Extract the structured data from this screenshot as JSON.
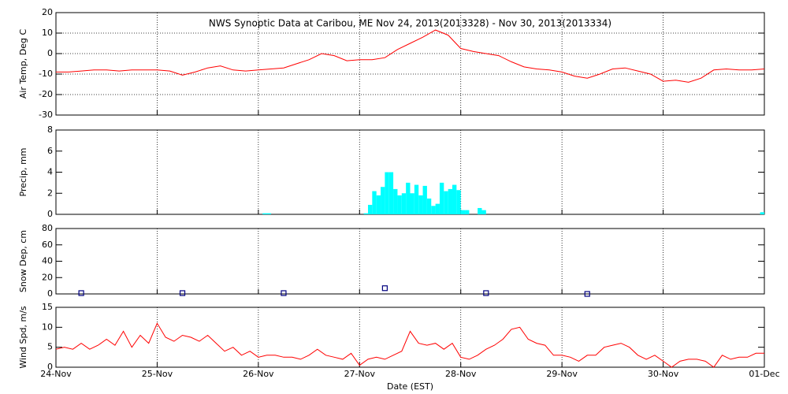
{
  "chart_data": [
    {
      "type": "line",
      "title": "NWS Synoptic Data at Caribou, ME   Nov 24, 2013(2013328) - Nov 30, 2013(2013334)",
      "ylabel": "Air Temp, Deg C",
      "color": "#ff0000",
      "grid": "both",
      "xlim": [
        0,
        168
      ],
      "xticks": [
        0,
        24,
        48,
        72,
        96,
        120,
        144,
        168
      ],
      "ylim": [
        -30,
        20
      ],
      "yticks": [
        -30,
        -20,
        -10,
        0,
        10,
        20
      ],
      "x": [
        0,
        3,
        6,
        9,
        12,
        15,
        18,
        21,
        24,
        27,
        30,
        33,
        36,
        39,
        42,
        45,
        48,
        51,
        54,
        57,
        60,
        63,
        66,
        69,
        72,
        75,
        78,
        81,
        84,
        87,
        90,
        93,
        96,
        99,
        102,
        105,
        108,
        111,
        114,
        117,
        120,
        123,
        126,
        129,
        132,
        135,
        138,
        141,
        144,
        147,
        150,
        153,
        156,
        159,
        162,
        165,
        168
      ],
      "values": [
        -9,
        -9,
        -8.5,
        -8,
        -8,
        -8.5,
        -8,
        -8,
        -8,
        -8.5,
        -10.5,
        -9,
        -7,
        -6,
        -8,
        -8.5,
        -8,
        -7.5,
        -7,
        -5,
        -3,
        0,
        -1,
        -3.5,
        -3,
        -3,
        -2,
        2,
        5,
        8,
        11.5,
        9,
        2.5,
        1,
        0,
        -1,
        -4,
        -6.5,
        -7.5,
        -8,
        -9,
        -11,
        -12,
        -10,
        -7.5,
        -7,
        -8.5,
        -10,
        -13.5,
        -13,
        -14,
        -12,
        -8,
        -7.5,
        -8,
        -8,
        -7.5
      ]
    },
    {
      "type": "bar",
      "ylabel": "Precip, mm",
      "color": "#00ffff",
      "grid": "x",
      "xlim": [
        0,
        168
      ],
      "xticks": [
        0,
        24,
        48,
        72,
        96,
        120,
        144,
        168
      ],
      "ylim": [
        0,
        8
      ],
      "yticks": [
        0,
        2,
        4,
        6,
        8
      ],
      "x": [
        49,
        50,
        73,
        74,
        75,
        76,
        77,
        78,
        79,
        80,
        81,
        82,
        83,
        84,
        85,
        86,
        87,
        88,
        89,
        90,
        91,
        92,
        93,
        94,
        95,
        96,
        97,
        100,
        101,
        167
      ],
      "values": [
        0.1,
        0.1,
        0.1,
        0.9,
        2.2,
        1.8,
        2.6,
        4,
        4,
        2.4,
        1.8,
        2,
        3,
        2,
        2.8,
        1.8,
        2.7,
        1.5,
        0.8,
        1,
        3,
        2.2,
        2.4,
        2.8,
        2.3,
        0.4,
        0.4,
        0.6,
        0.4,
        0.2
      ]
    },
    {
      "type": "scatter",
      "ylabel": "Snow Dep, cm",
      "color": "#000080",
      "grid": "x",
      "xlim": [
        0,
        168
      ],
      "xticks": [
        0,
        24,
        48,
        72,
        96,
        120,
        144,
        168
      ],
      "ylim": [
        0,
        80
      ],
      "yticks": [
        0,
        20,
        40,
        60,
        80
      ],
      "x": [
        6,
        30,
        54,
        78,
        102,
        126
      ],
      "values": [
        1,
        1,
        1,
        7,
        1,
        0
      ]
    },
    {
      "type": "line",
      "ylabel": "Wind Spd, m/s",
      "xlabel": "Date (EST)",
      "color": "#ff0000",
      "grid": "x",
      "xlim": [
        0,
        168
      ],
      "xticks": [
        {
          "value": 0,
          "label": "24-Nov"
        },
        {
          "value": 24,
          "label": "25-Nov"
        },
        {
          "value": 48,
          "label": "26-Nov"
        },
        {
          "value": 72,
          "label": "27-Nov"
        },
        {
          "value": 96,
          "label": "28-Nov"
        },
        {
          "value": 120,
          "label": "29-Nov"
        },
        {
          "value": 144,
          "label": "30-Nov"
        },
        {
          "value": 168,
          "label": "01-Dec"
        }
      ],
      "ylim": [
        0,
        15
      ],
      "yticks": [
        0,
        5,
        10,
        15
      ],
      "x": [
        0,
        2,
        4,
        6,
        8,
        10,
        12,
        14,
        16,
        18,
        20,
        22,
        24,
        26,
        28,
        30,
        32,
        34,
        36,
        38,
        40,
        42,
        44,
        46,
        48,
        50,
        52,
        54,
        56,
        58,
        60,
        62,
        64,
        66,
        68,
        70,
        72,
        74,
        76,
        78,
        80,
        82,
        84,
        86,
        88,
        90,
        92,
        94,
        96,
        98,
        100,
        102,
        104,
        106,
        108,
        110,
        112,
        114,
        116,
        118,
        120,
        122,
        124,
        126,
        128,
        130,
        132,
        134,
        136,
        138,
        140,
        142,
        144,
        146,
        148,
        150,
        152,
        154,
        156,
        158,
        160,
        162,
        164,
        166,
        168
      ],
      "values": [
        4.5,
        5,
        4.5,
        6,
        4.5,
        5.5,
        7,
        5.5,
        9,
        5,
        8,
        6,
        11,
        7.5,
        6.5,
        8,
        7.5,
        6.5,
        8,
        6,
        4,
        5,
        3,
        4,
        2.5,
        3,
        3,
        2.5,
        2.5,
        2,
        3,
        4.5,
        3,
        2.5,
        2,
        3.5,
        0.5,
        2,
        2.5,
        2,
        3,
        4,
        9,
        6,
        5.5,
        6,
        4.5,
        6,
        2.5,
        2,
        3,
        4.5,
        5.5,
        7,
        9.5,
        10,
        7,
        6,
        5.5,
        3,
        3,
        2.5,
        1.5,
        3,
        3,
        5,
        5.5,
        6,
        5,
        3,
        2,
        3,
        1.5,
        0,
        1.5,
        2,
        2,
        1.5,
        0,
        3,
        2,
        2.5,
        2.5,
        3.5,
        3.5
      ]
    }
  ]
}
